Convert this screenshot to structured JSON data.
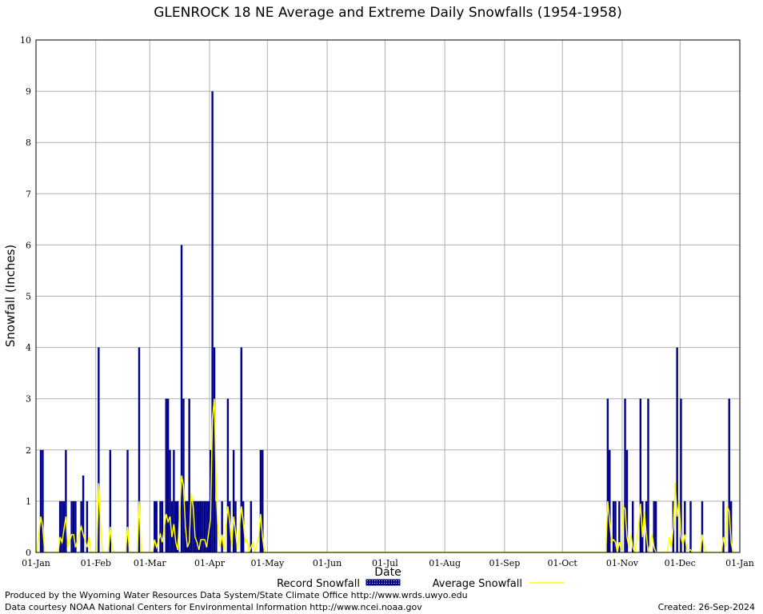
{
  "chart_data": {
    "type": "bar",
    "title": "GLENROCK 18 NE Average and Extreme Daily Snowfalls (1954-1958)",
    "x_label": "Date",
    "y_label": "Snowfall (Inches)",
    "xlim": [
      0,
      365
    ],
    "ylim": [
      0,
      10
    ],
    "grid": true,
    "xticks": [
      {
        "value": 0,
        "label": "01-Jan"
      },
      {
        "value": 31,
        "label": "01-Feb"
      },
      {
        "value": 59,
        "label": "01-Mar"
      },
      {
        "value": 90,
        "label": "01-Apr"
      },
      {
        "value": 120,
        "label": "01-May"
      },
      {
        "value": 151,
        "label": "01-Jun"
      },
      {
        "value": 181,
        "label": "01-Jul"
      },
      {
        "value": 212,
        "label": "01-Aug"
      },
      {
        "value": 243,
        "label": "01-Sep"
      },
      {
        "value": 273,
        "label": "01-Oct"
      },
      {
        "value": 304,
        "label": "01-Nov"
      },
      {
        "value": 334,
        "label": "01-Dec"
      },
      {
        "value": 365,
        "label": "01-Jan"
      }
    ],
    "yticks": [
      0,
      1,
      2,
      3,
      4,
      5,
      6,
      7,
      8,
      9,
      10
    ],
    "series": [
      {
        "name": "Record Snowfall",
        "type": "bar",
        "color": "#00008b",
        "x": [
          2,
          3,
          12,
          13,
          14,
          15,
          18,
          19,
          20,
          23,
          24,
          26,
          32,
          38,
          47,
          53,
          61,
          62,
          64,
          65,
          67,
          68,
          69,
          70,
          71,
          72,
          73,
          75,
          76,
          77,
          78,
          79,
          80,
          81,
          82,
          83,
          84,
          85,
          86,
          87,
          88,
          89,
          90,
          91,
          92,
          93,
          96,
          99,
          100,
          102,
          103,
          106,
          107,
          111,
          116,
          117,
          296,
          297,
          299,
          300,
          302,
          305,
          306,
          309,
          313,
          314,
          316,
          317,
          320,
          321,
          330,
          332,
          334,
          336,
          339,
          345,
          356,
          359,
          360
        ],
        "values": [
          2,
          2,
          1,
          1,
          1,
          2,
          1,
          1,
          1,
          1,
          1.5,
          1,
          4,
          2,
          2,
          4,
          1,
          1,
          1,
          1,
          3,
          3,
          2,
          1,
          2,
          1,
          1,
          6,
          3,
          1,
          1,
          3,
          1,
          1,
          1,
          1,
          1,
          1,
          1,
          1,
          1,
          1,
          2,
          9,
          4,
          1,
          1,
          3,
          1,
          2,
          1,
          4,
          1,
          1,
          2,
          2,
          3,
          2,
          1,
          1,
          1,
          3,
          2,
          1,
          3,
          1,
          1,
          3,
          1,
          1,
          1,
          4,
          3,
          1,
          1,
          1,
          1,
          3,
          1
        ]
      },
      {
        "name": "Average Snowfall",
        "type": "line",
        "color": "#ffff00",
        "x": [
          0,
          2,
          3,
          4,
          11,
          12,
          13,
          15,
          16,
          18,
          19,
          20,
          23,
          24,
          26,
          27,
          28,
          31,
          32,
          33,
          34,
          37,
          38,
          39,
          40,
          46,
          47,
          48,
          52,
          53,
          54,
          60,
          61,
          62,
          64,
          65,
          67,
          68,
          69,
          70,
          71,
          72,
          73,
          75,
          76,
          77,
          78,
          79,
          80,
          81,
          82,
          83,
          84,
          85,
          87,
          88,
          90,
          91,
          92,
          93,
          94,
          95,
          96,
          97,
          99,
          100,
          101,
          102,
          103,
          104,
          106,
          107,
          108,
          109,
          110,
          112,
          113,
          115,
          116,
          117,
          118,
          295,
          296,
          297,
          298,
          299,
          300,
          301,
          302,
          303,
          304,
          305,
          306,
          307,
          308,
          309,
          310,
          312,
          313,
          314,
          315,
          316,
          317,
          319,
          320,
          321,
          327,
          328,
          329,
          330,
          331,
          332,
          333,
          334,
          335,
          336,
          337,
          339,
          340,
          344,
          345,
          346,
          347,
          355,
          356,
          357,
          358,
          359,
          360,
          361
        ],
        "values": [
          0,
          0.7,
          0.5,
          0,
          0,
          0.3,
          0.2,
          0.7,
          0.1,
          0.35,
          0.35,
          0.1,
          0.5,
          0.35,
          0.1,
          0.3,
          0,
          0,
          1.35,
          0.5,
          0,
          0,
          0.5,
          0.1,
          0,
          0,
          0.5,
          0,
          0,
          1,
          0,
          0,
          0.25,
          0.1,
          0.35,
          0.2,
          0.75,
          0.6,
          0.7,
          0.3,
          0.55,
          0.2,
          0.05,
          1.5,
          1.3,
          0.5,
          0.1,
          0.2,
          1.15,
          0.9,
          0.3,
          0.2,
          0.05,
          0.25,
          0.25,
          0.1,
          0.65,
          2.6,
          3,
          1.2,
          0.3,
          0.1,
          0.35,
          0.05,
          0.9,
          0.6,
          0.1,
          0.7,
          0.4,
          0.05,
          0.9,
          0.6,
          0.2,
          0.25,
          0,
          0.2,
          0,
          0.3,
          0.75,
          0.3,
          0,
          0,
          1,
          0.6,
          0.2,
          0.25,
          0.2,
          0,
          0.2,
          0.05,
          0.9,
          0.85,
          0.3,
          0.1,
          0.35,
          0.1,
          0,
          0.5,
          0.95,
          0.3,
          0.8,
          0.35,
          0,
          0.35,
          0.1,
          0,
          0,
          0.3,
          0.1,
          0.5,
          1.35,
          0.7,
          1,
          0.3,
          0.15,
          0.35,
          0.05,
          0.05,
          0,
          0,
          0.35,
          0.1,
          0,
          0,
          0.3,
          0.1,
          0.9,
          0.8,
          0.2,
          0
        ]
      }
    ]
  },
  "footer": {
    "lines": [
      "Produced by the Wyoming Water Resources Data System/State Climate Office http://www.wrds.uwyo.edu",
      "Data courtesy NOAA National Centers for Environmental Information http://www.ncei.noaa.gov"
    ],
    "created": "Created:  26-Sep-2024"
  }
}
